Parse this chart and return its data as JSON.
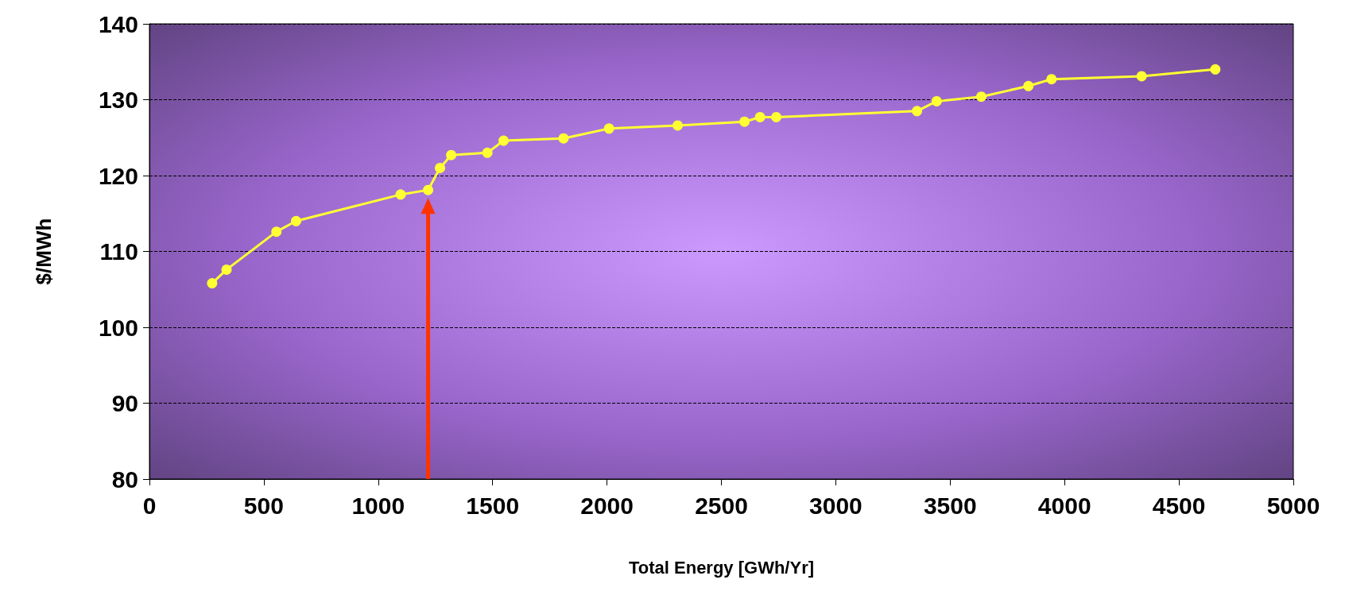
{
  "chart_data": {
    "type": "line",
    "xlabel": "Total Energy [GWh/Yr]",
    "ylabel": "$/MWh",
    "x": [
      274,
      337,
      555,
      641,
      1098,
      1218,
      1270,
      1319,
      1477,
      1548,
      1810,
      2009,
      2309,
      2601,
      2669,
      2740,
      3355,
      3441,
      3636,
      3842,
      3943,
      4337,
      4659
    ],
    "series": [
      {
        "color": "#ffff33",
        "values": [
          105.8,
          107.6,
          112.6,
          114.0,
          117.5,
          118.1,
          121.0,
          122.7,
          123.0,
          124.6,
          124.9,
          126.2,
          126.6,
          127.1,
          127.7,
          127.7,
          128.5,
          129.8,
          130.4,
          131.8,
          132.7,
          133.1,
          134.0
        ]
      }
    ],
    "xlim": [
      0,
      5000
    ],
    "xticks": [
      0,
      500,
      1000,
      1500,
      2000,
      2500,
      3000,
      3500,
      4000,
      4500,
      5000
    ],
    "ylim": [
      80,
      140
    ],
    "yticks": [
      80,
      90,
      100,
      110,
      120,
      130,
      140
    ],
    "ref_lines": [
      {
        "axis": "x",
        "value": 1218,
        "color": "#ff3300"
      }
    ],
    "grid": "y",
    "marker": "circle",
    "line_style": "solid"
  }
}
